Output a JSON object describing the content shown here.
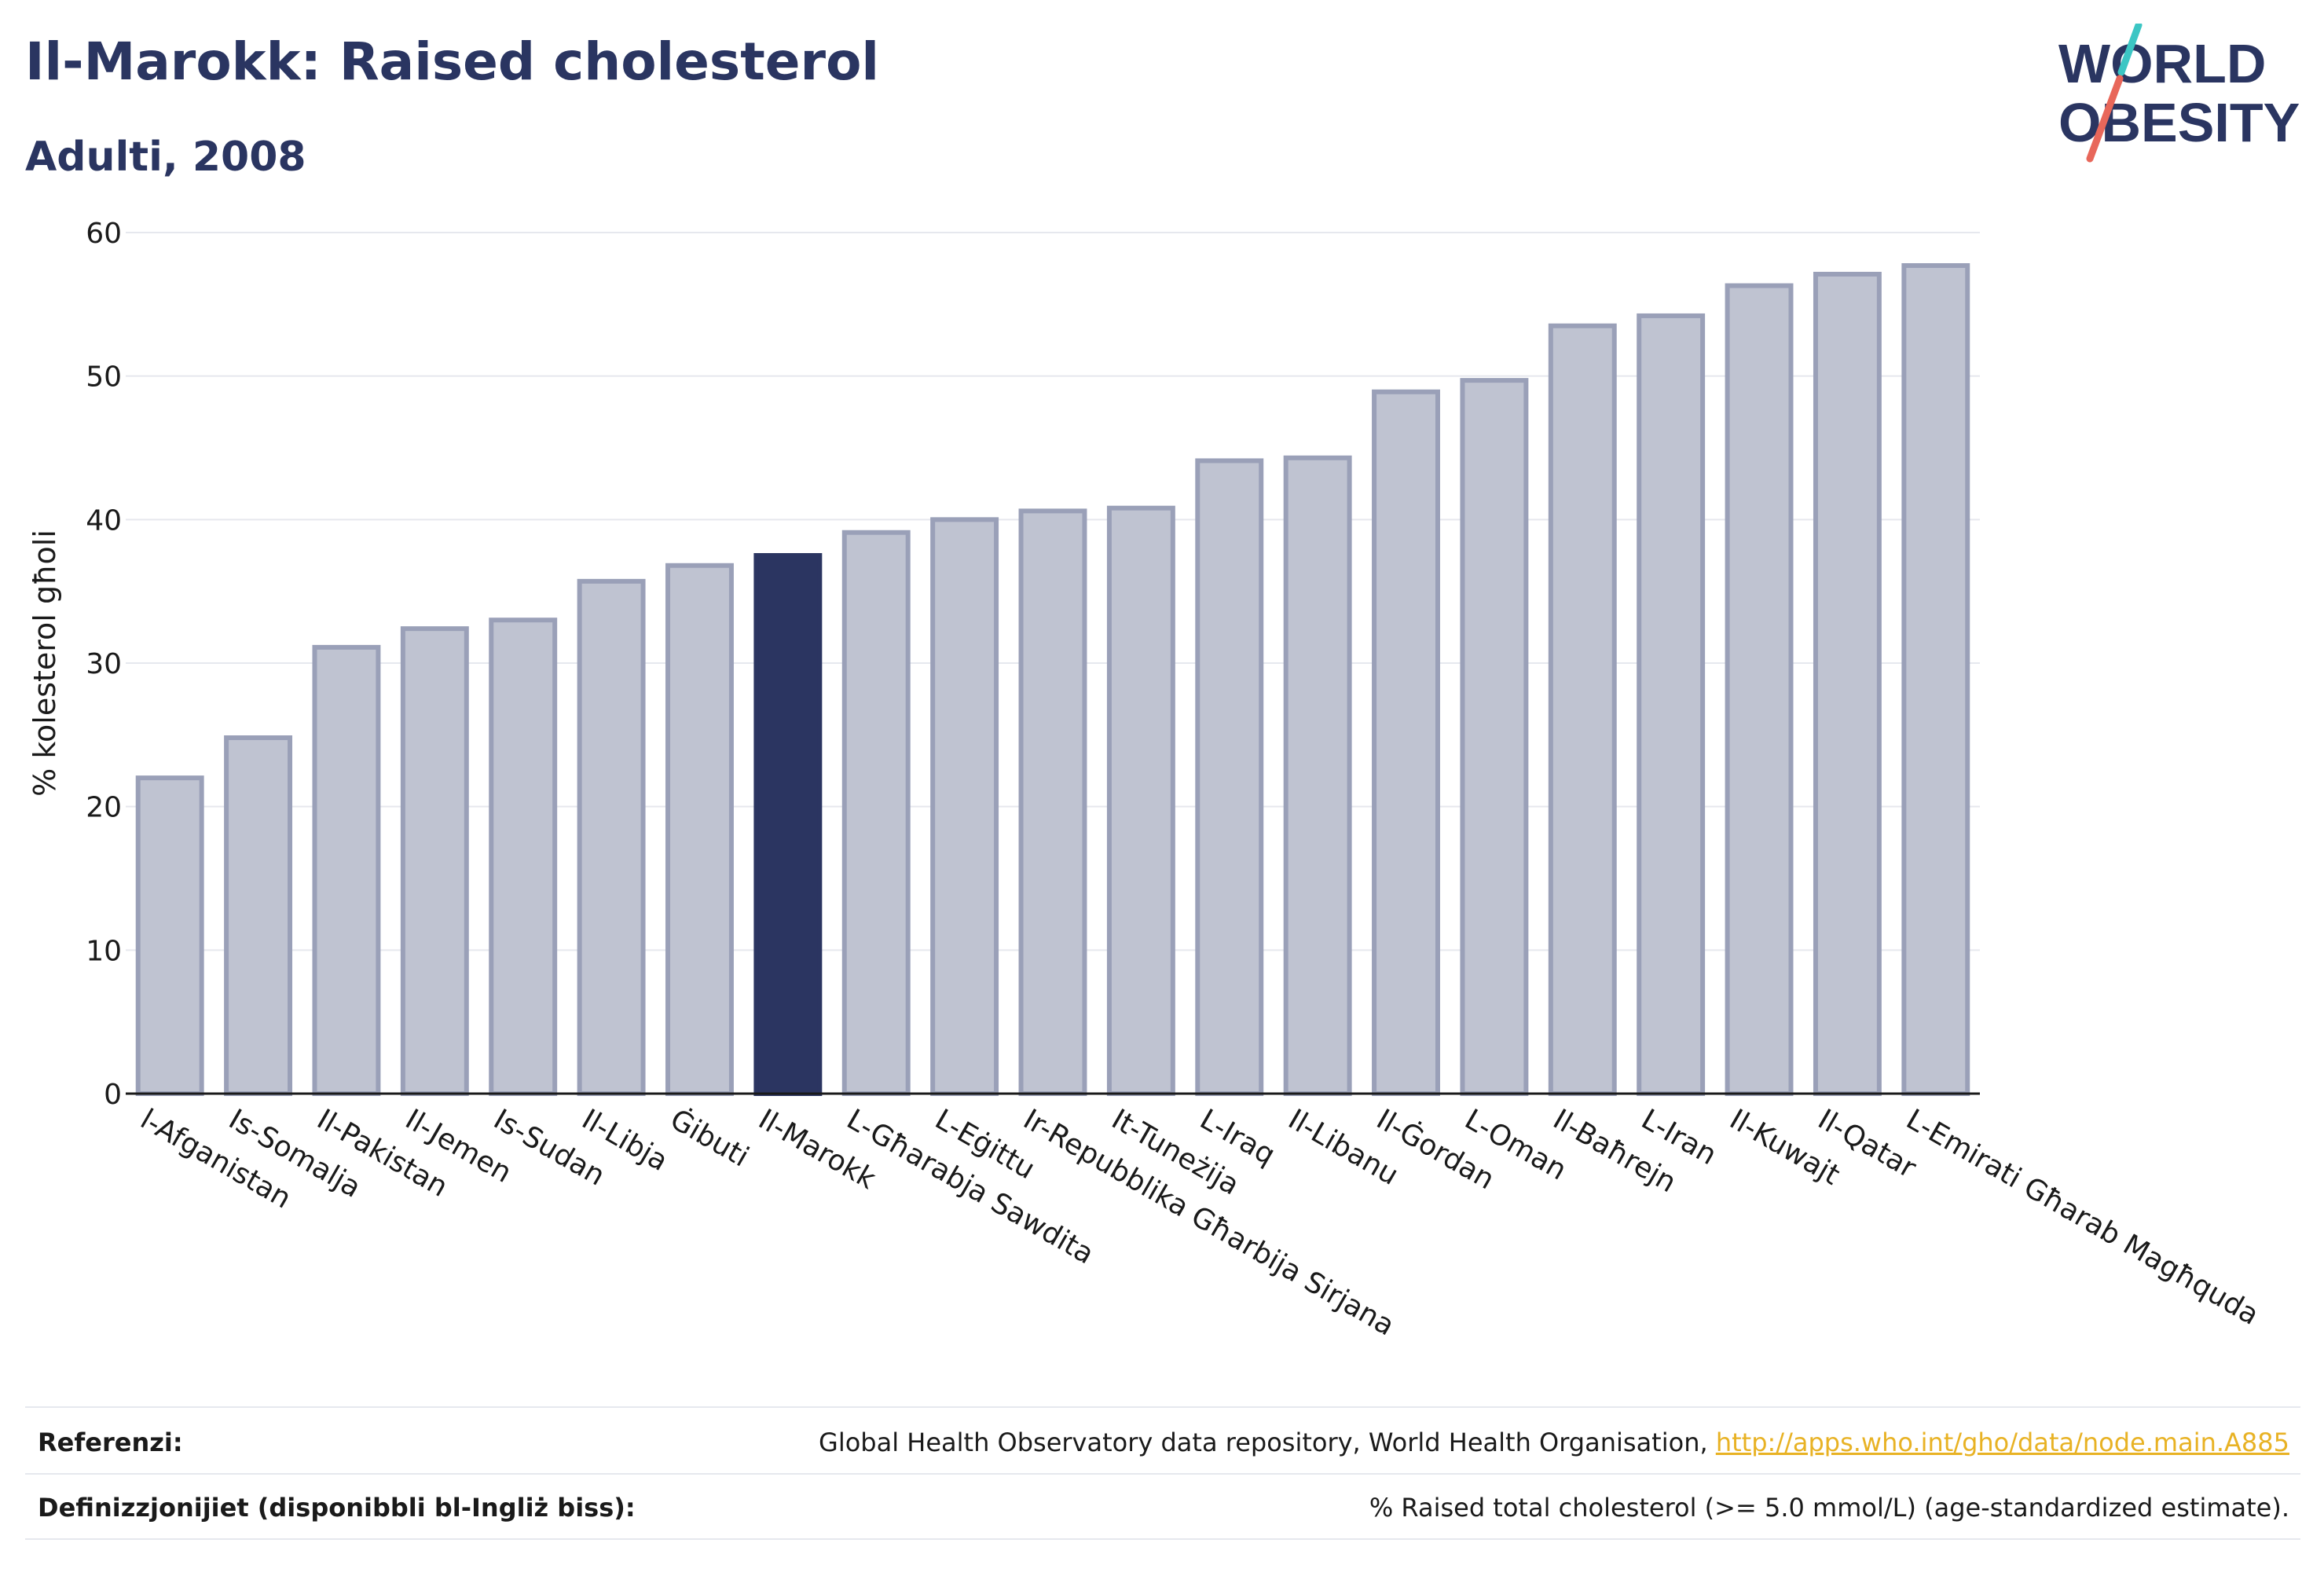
{
  "header": {
    "title": "Il-Marokk: Raised cholesterol",
    "subtitle": "Adulti, 2008"
  },
  "logo": {
    "line1": "WORLD",
    "line2": "OBESITY"
  },
  "colors": {
    "highlight_bar": "#2b3561",
    "other_bar_fill": "#bfc3d1",
    "other_bar_stroke": "#9aa0b8",
    "title": "#2a3561",
    "link": "#e8b224",
    "logo_teal": "#3cc6c4",
    "logo_red": "#e8675a"
  },
  "chart_data": {
    "type": "bar",
    "title": "Il-Marokk: Raised cholesterol",
    "subtitle": "Adulti, 2008",
    "ylabel": "% kolesterol għoli",
    "xlabel": "",
    "ylim": [
      0,
      60
    ],
    "yticks": [
      0,
      10,
      20,
      30,
      40,
      50,
      60
    ],
    "grid": true,
    "highlight": "Il-Marokk",
    "categories": [
      "l-Afganistan",
      "Is-Somalja",
      "Il-Pakistan",
      "Il-Jemen",
      "Is-Sudan",
      "Il-Libja",
      "Ġibuti",
      "Il-Marokk",
      "L-Għarabja Sawdita",
      "L-Eġittu",
      "Ir-Repubblika Għarbija Sirjana",
      "It-Tuneżija",
      "L-Iraq",
      "Il-Libanu",
      "Il-Ġordan",
      "L-Oman",
      "Il-Baħrejn",
      "L-Iran",
      "Il-Kuwajt",
      "Il-Qatar",
      "L-Emirati Għarab Magħquda"
    ],
    "values": [
      22.0,
      24.8,
      31.1,
      32.4,
      33.0,
      35.7,
      36.8,
      37.5,
      39.1,
      40.0,
      40.6,
      40.8,
      44.1,
      44.3,
      48.9,
      49.7,
      53.5,
      54.2,
      56.3,
      57.1,
      57.7
    ]
  },
  "footer": {
    "references_label": "Referenzi:",
    "references_text": "Global Health Observatory data repository, World Health Organisation, ",
    "references_link": "http://apps.who.int/gho/data/node.main.A885",
    "definitions_label": "Definizzjonijiet (disponibbli bl-Ingliż biss):",
    "definitions_text": "% Raised total cholesterol (>= 5.0 mmol/L) (age-standardized estimate)."
  }
}
